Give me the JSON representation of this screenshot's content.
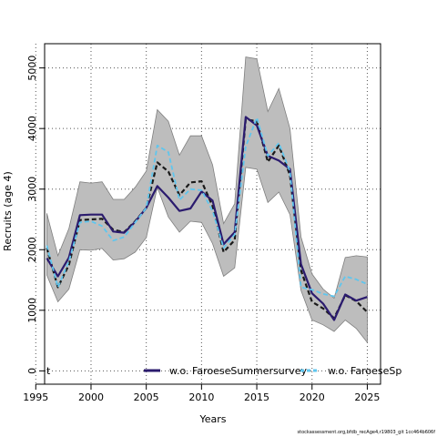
{
  "chart_data": {
    "type": "line",
    "xlabel": "Years",
    "ylabel": "Recruits (age 4)",
    "xlim": [
      1995.8,
      2026.2
    ],
    "ylim": [
      -220,
      5400
    ],
    "x_ticks": [
      1995,
      2000,
      2005,
      2010,
      2015,
      2020,
      2025
    ],
    "y_ticks": [
      0,
      1000,
      2000,
      3000,
      4000,
      5000
    ],
    "x_tick_labels": [
      "1995",
      "2000",
      "2005",
      "2010",
      "2015",
      "2020",
      "2025"
    ],
    "y_tick_labels": [
      "0",
      "1000",
      "2000",
      "3000",
      "4000",
      "5000"
    ],
    "grid": "dotted",
    "colors": {
      "band": "#bdbdbd",
      "band_edge": "#7f7f7f",
      "base": "#1a1a1a",
      "wo_summer": "#2b1b6e",
      "wo_spring": "#5fc6ee"
    },
    "x": [
      1996,
      1997,
      1998,
      1999,
      2000,
      2001,
      2002,
      2003,
      2004,
      2005,
      2006,
      2007,
      2008,
      2009,
      2010,
      2011,
      2012,
      2013,
      2014,
      2015,
      2016,
      2017,
      2018,
      2019,
      2020,
      2021,
      2022,
      2023,
      2024,
      2025
    ],
    "band": {
      "upper": [
        2600,
        1900,
        2350,
        3120,
        3100,
        3120,
        2830,
        2830,
        3030,
        3300,
        4310,
        4120,
        3560,
        3880,
        3880,
        3400,
        2430,
        2760,
        5180,
        5150,
        4280,
        4660,
        4000,
        2210,
        1600,
        1350,
        1200,
        1870,
        1900,
        1880
      ],
      "lower": [
        1580,
        1140,
        1350,
        2000,
        1990,
        2020,
        1830,
        1850,
        1960,
        2200,
        3030,
        2540,
        2290,
        2470,
        2450,
        2100,
        1560,
        1700,
        3360,
        3330,
        2780,
        2950,
        2580,
        1330,
        840,
        760,
        650,
        840,
        700,
        470
      ]
    },
    "series": [
      {
        "key": "base",
        "values": [
          2030,
          1380,
          1750,
          2490,
          2500,
          2510,
          2330,
          2290,
          2470,
          2690,
          3440,
          3290,
          2900,
          3110,
          3130,
          2720,
          1960,
          2160,
          4150,
          4120,
          3450,
          3720,
          3230,
          1660,
          1140,
          1030,
          870,
          1250,
          1150,
          970
        ]
      },
      {
        "key": "wo_summer",
        "name": "w.o. FaroeseSummersurvey",
        "values": [
          1860,
          1560,
          1870,
          2570,
          2580,
          2580,
          2300,
          2280,
          2460,
          2690,
          3050,
          2860,
          2640,
          2680,
          2960,
          2810,
          2090,
          2290,
          4190,
          4050,
          3550,
          3470,
          3330,
          1760,
          1280,
          1110,
          840,
          1260,
          1160,
          1220
        ]
      },
      {
        "key": "wo_spring",
        "name": "w.o. FaroeseSp",
        "values": [
          2070,
          1380,
          1810,
          2450,
          2470,
          2390,
          2150,
          2210,
          2450,
          2690,
          3720,
          3610,
          2820,
          3000,
          2980,
          2640,
          2030,
          2250,
          3700,
          4180,
          3550,
          3760,
          3290,
          1380,
          1340,
          1270,
          1230,
          1560,
          1510,
          1430
        ]
      }
    ],
    "legend": {
      "position": "bottom-center",
      "left_fragment": "t"
    }
  },
  "footer": {
    "text": "stockassessment.org,bfdb_recAge4,r19803_git 1cc464b606f"
  }
}
